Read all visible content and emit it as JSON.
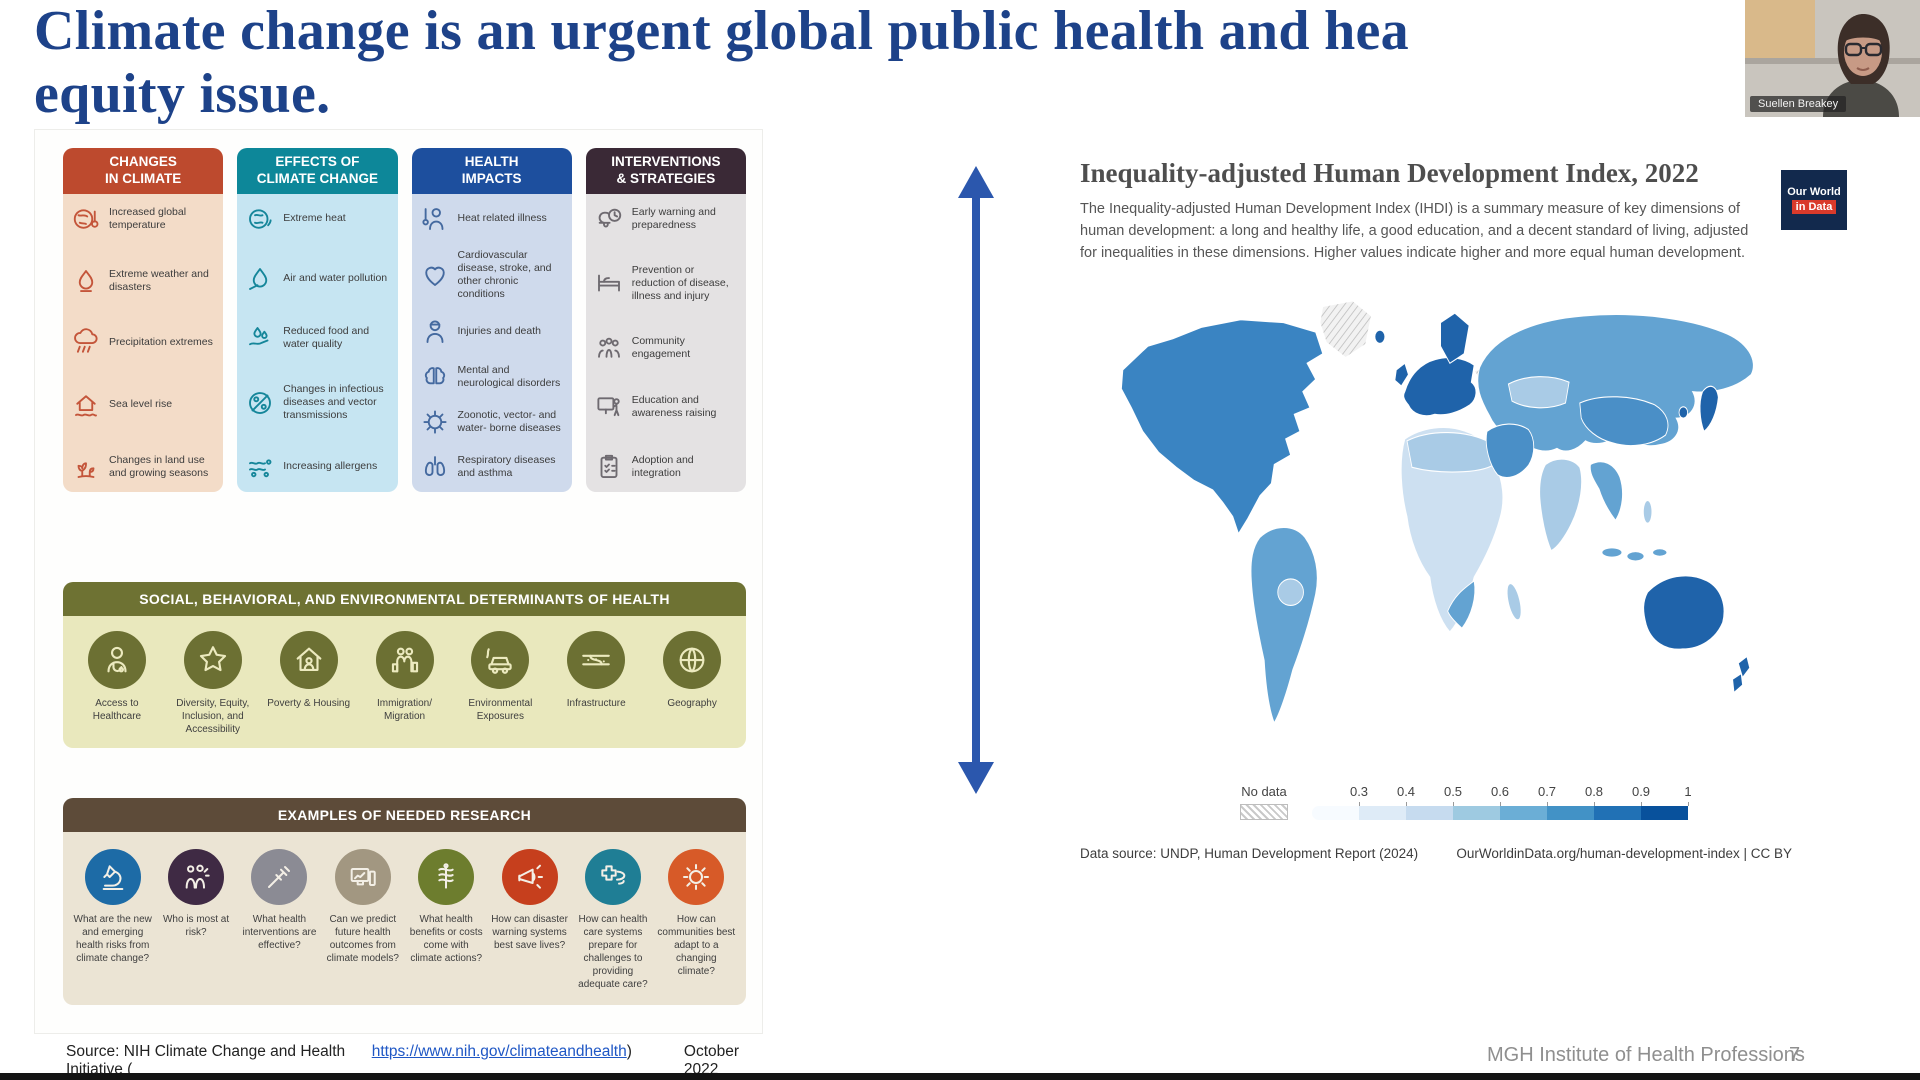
{
  "slide": {
    "title_line1": "Climate change is an urgent global public health and hea",
    "title_line2": "equity issue.",
    "footer": "MGH Institute of Health Professions",
    "page_number": "7"
  },
  "webcam": {
    "name": "Suellen Breakey"
  },
  "infographic": {
    "columns": [
      {
        "title": "CHANGES\nIN CLIMATE",
        "colors": {
          "header": "#bd4a2e",
          "body": "#f3dcc8",
          "icon": "#c4553a"
        },
        "items": [
          {
            "icon": "globe-thermometer",
            "label": "Increased global temperature"
          },
          {
            "icon": "wildfire",
            "label": "Extreme weather and disasters"
          },
          {
            "icon": "rain-cloud",
            "label": "Precipitation extremes"
          },
          {
            "icon": "house-flood",
            "label": "Sea level rise"
          },
          {
            "icon": "sprout",
            "label": "Changes in land use and growing seasons"
          }
        ]
      },
      {
        "title": "EFFECTS OF\nCLIMATE CHANGE",
        "colors": {
          "header": "#0d8799",
          "body": "#c6e5f2",
          "icon": "#15869a"
        },
        "items": [
          {
            "icon": "globe-fire",
            "label": "Extreme heat"
          },
          {
            "icon": "drop-pollution",
            "label": "Air and water pollution"
          },
          {
            "icon": "hand-drops",
            "label": "Reduced food and water quality"
          },
          {
            "icon": "microbes-slash",
            "label": "Changes in infectious diseases and vector transmissions"
          },
          {
            "icon": "allergens",
            "label": "Increasing allergens"
          }
        ]
      },
      {
        "title": "HEALTH\nIMPACTS",
        "colors": {
          "header": "#1d4f9e",
          "body": "#cfdaec",
          "icon": "#44699f"
        },
        "items": [
          {
            "icon": "person-heat",
            "label": "Heat related illness"
          },
          {
            "icon": "heart-organ",
            "label": "Cardiovascular disease, stroke, and other chronic conditions"
          },
          {
            "icon": "injury",
            "label": "Injuries and death"
          },
          {
            "icon": "brain",
            "label": "Mental and neurological disorders"
          },
          {
            "icon": "virus",
            "label": "Zoonotic, vector- and water- borne diseases"
          },
          {
            "icon": "lungs",
            "label": "Respiratory diseases and asthma"
          }
        ]
      },
      {
        "title": "INTERVENTIONS\n& STRATEGIES",
        "colors": {
          "header": "#3a2936",
          "body": "#e4e2e3",
          "icon": "#6e6a70"
        },
        "items": [
          {
            "icon": "bell-clock",
            "label": "Early warning and preparedness"
          },
          {
            "icon": "hospital-bed",
            "label": "Prevention or reduction of disease, illness and injury"
          },
          {
            "icon": "community",
            "label": "Community engagement"
          },
          {
            "icon": "presentation",
            "label": "Education and awareness raising"
          },
          {
            "icon": "clipboard",
            "label": "Adoption and integration"
          }
        ]
      }
    ],
    "determinants": {
      "title": "SOCIAL, BEHAVIORAL, AND ENVIRONMENTAL DETERMINANTS OF HEALTH",
      "items": [
        {
          "icon": "doctor",
          "label": "Access to Healthcare"
        },
        {
          "icon": "star-hands",
          "label": "Diversity, Equity, Inclusion, and Accessibility"
        },
        {
          "icon": "house-person",
          "label": "Poverty & Housing"
        },
        {
          "icon": "migration",
          "label": "Immigration/ Migration"
        },
        {
          "icon": "car-exhaust",
          "label": "Environmental Exposures"
        },
        {
          "icon": "infrastructure",
          "label": "Infrastructure"
        },
        {
          "icon": "globe",
          "label": "Geography"
        }
      ]
    },
    "research": {
      "title": "EXAMPLES OF NEEDED RESEARCH",
      "items": [
        {
          "icon": "microscope",
          "color": "#1d6ba6",
          "label": "What are the new and emerging health risks from climate change?"
        },
        {
          "icon": "people-risk",
          "color": "#3f2a44",
          "label": "Who is most at risk?"
        },
        {
          "icon": "syringe",
          "color": "#8b8b94",
          "label": "What health interventions are effective?"
        },
        {
          "icon": "computer-chart",
          "color": "#a29781",
          "label": "Can we predict future health outcomes from climate models?"
        },
        {
          "icon": "caduceus",
          "color": "#6d7d2e",
          "label": "What health benefits or costs come with climate actions?"
        },
        {
          "icon": "megaphone",
          "color": "#c63f1d",
          "label": "How can disaster warning systems best save lives?"
        },
        {
          "icon": "health-storm",
          "color": "#1f7e95",
          "label": "How can health care systems prepare for challenges to providing adequate care?"
        },
        {
          "icon": "sun-adapt",
          "color": "#d75a28",
          "label": "How can communities best adapt to a changing climate?"
        }
      ]
    },
    "source_prefix": "Source: NIH Climate Change and Health Initiative (",
    "source_link": "https://www.nih.gov/climateandhealth",
    "source_suffix": ")",
    "source_date": "October 2022"
  },
  "map_panel": {
    "logo_line1": "Our World",
    "logo_line2": "in Data",
    "title": "Inequality-adjusted Human Development Index, 2022",
    "description": "The Inequality-adjusted Human Development Index (IHDI) is a summary measure of key dimensions of human development: a long and healthy life, a good education, and a decent standard of living, adjusted for inequalities in these dimensions. Higher values indicate higher and more equal human development.",
    "legend": {
      "no_data_label": "No data",
      "tick_labels": [
        "0.3",
        "0.4",
        "0.5",
        "0.6",
        "0.7",
        "0.8",
        "0.9",
        "1"
      ],
      "segment_colors": [
        "#f7fbff",
        "#deebf7",
        "#c6dbef",
        "#9ecae1",
        "#6baed6",
        "#4292c6",
        "#2171b5",
        "#08519c"
      ]
    },
    "data_source": "Data source: UNDP, Human Development Report (2024)",
    "attribution": "OurWorldinData.org/human-development-index | CC BY"
  },
  "accent_colors": {
    "title_blue": "#1d4289",
    "arrow_blue": "#2b57ad",
    "owid_navy": "#12294d",
    "owid_red": "#d93a2b"
  }
}
